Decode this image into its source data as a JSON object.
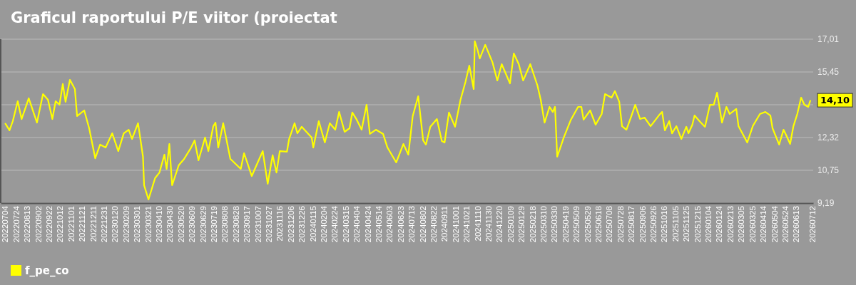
{
  "chart_data": {
    "type": "line",
    "title": "Graficul raportului P/E viitor (proiectat",
    "x": [
      "2022-07-04",
      "2022-07-12",
      "2022-07-18",
      "2022-07-27",
      "2022-08-03",
      "2022-08-12",
      "2022-08-16",
      "2022-08-31",
      "2022-09-11",
      "2022-09-20",
      "2022-09-28",
      "2022-10-04",
      "2022-10-11",
      "2022-10-17",
      "2022-10-22",
      "2022-10-30",
      "2022-11-08",
      "2022-11-12",
      "2022-11-25",
      "2022-12-04",
      "2022-12-15",
      "2022-12-24",
      "2023-01-03",
      "2023-01-15",
      "2023-01-26",
      "2023-02-05",
      "2023-02-14",
      "2023-02-20",
      "2023-03-03",
      "2023-03-12",
      "2023-03-14",
      "2023-03-22",
      "2023-04-03",
      "2023-04-11",
      "2023-04-20",
      "2023-04-24",
      "2023-04-29",
      "2023-05-04",
      "2023-05-16",
      "2023-05-26",
      "2023-06-07",
      "2023-06-14",
      "2023-06-21",
      "2023-07-03",
      "2023-07-09",
      "2023-07-18",
      "2023-07-22",
      "2023-07-27",
      "2023-08-05",
      "2023-08-18",
      "2023-09-06",
      "2023-09-12",
      "2023-09-26",
      "2023-10-16",
      "2023-10-25",
      "2023-11-03",
      "2023-11-10",
      "2023-11-16",
      "2023-11-29",
      "2023-12-03",
      "2023-12-13",
      "2023-12-18",
      "2023-12-26",
      "2024-01-13",
      "2024-01-16",
      "2024-01-26",
      "2024-02-06",
      "2024-02-15",
      "2024-02-25",
      "2024-03-03",
      "2024-03-13",
      "2024-03-22",
      "2024-03-27",
      "2024-04-04",
      "2024-04-13",
      "2024-04-22",
      "2024-04-28",
      "2024-05-09",
      "2024-05-22",
      "2024-05-30",
      "2024-06-15",
      "2024-06-28",
      "2024-07-07",
      "2024-07-15",
      "2024-07-25",
      "2024-08-03",
      "2024-08-08",
      "2024-08-16",
      "2024-08-28",
      "2024-09-06",
      "2024-09-11",
      "2024-09-19",
      "2024-09-30",
      "2024-10-10",
      "2024-10-19",
      "2024-10-26",
      "2024-11-03",
      "2024-11-05",
      "2024-11-10",
      "2024-11-14",
      "2024-11-24",
      "2024-12-07",
      "2024-12-16",
      "2024-12-24",
      "2025-01-08",
      "2025-01-15",
      "2025-01-24",
      "2025-02-01",
      "2025-02-14",
      "2025-02-27",
      "2025-03-05",
      "2025-03-12",
      "2025-03-21",
      "2025-03-27",
      "2025-03-31",
      "2025-04-04",
      "2025-04-16",
      "2025-04-29",
      "2025-05-12",
      "2025-05-18",
      "2025-05-22",
      "2025-06-03",
      "2025-06-13",
      "2025-06-24",
      "2025-06-30",
      "2025-07-12",
      "2025-07-18",
      "2025-07-26",
      "2025-07-31",
      "2025-08-08",
      "2025-08-17",
      "2025-08-24",
      "2025-09-02",
      "2025-09-10",
      "2025-09-21",
      "2025-10-06",
      "2025-10-12",
      "2025-10-17",
      "2025-10-25",
      "2025-10-30",
      "2025-11-07",
      "2025-11-16",
      "2025-11-25",
      "2025-11-29",
      "2025-12-06",
      "2025-12-10",
      "2025-12-19",
      "2025-12-29",
      "2026-01-07",
      "2026-01-14",
      "2026-01-20",
      "2026-01-29",
      "2026-02-06",
      "2026-02-12",
      "2026-02-24",
      "2026-02-28",
      "2026-03-16",
      "2026-03-26",
      "2026-04-08",
      "2026-04-18",
      "2026-04-27",
      "2026-05-01",
      "2026-05-13",
      "2026-05-21",
      "2026-05-26",
      "2026-06-02",
      "2026-06-08",
      "2026-06-15",
      "2026-06-22",
      "2026-06-28",
      "2026-07-05",
      "2026-07-09"
    ],
    "series": [
      {
        "name": "f_pe_co",
        "color": "#ffff00",
        "values": [
          13.0,
          12.66,
          13.1,
          14.05,
          13.2,
          13.88,
          14.19,
          13.03,
          14.39,
          14.12,
          13.2,
          14.05,
          13.88,
          14.87,
          14.02,
          15.07,
          14.63,
          13.34,
          13.61,
          12.76,
          11.33,
          11.98,
          11.84,
          12.52,
          11.67,
          12.52,
          12.69,
          12.25,
          13.0,
          11.4,
          10.04,
          9.36,
          10.38,
          10.65,
          11.5,
          10.82,
          12.01,
          10.04,
          10.99,
          11.3,
          11.81,
          12.18,
          11.23,
          12.32,
          11.67,
          12.86,
          13.03,
          11.84,
          13.0,
          11.3,
          10.82,
          11.57,
          10.48,
          11.67,
          10.11,
          11.47,
          10.65,
          11.67,
          11.64,
          12.25,
          13.0,
          12.52,
          12.83,
          12.32,
          11.84,
          13.1,
          12.08,
          13.0,
          12.69,
          13.54,
          12.59,
          12.76,
          13.51,
          13.17,
          12.69,
          13.88,
          12.49,
          12.69,
          12.49,
          11.84,
          11.13,
          12.01,
          11.5,
          13.34,
          14.29,
          12.18,
          11.98,
          12.83,
          13.2,
          12.15,
          12.08,
          13.51,
          12.83,
          14.12,
          14.97,
          15.75,
          14.63,
          16.91,
          16.5,
          16.09,
          16.74,
          15.92,
          15.04,
          15.82,
          14.9,
          16.33,
          15.82,
          15.04,
          15.82,
          14.8,
          14.12,
          13.03,
          13.78,
          13.54,
          13.78,
          11.4,
          12.32,
          13.17,
          13.78,
          13.78,
          13.17,
          13.61,
          12.93,
          13.44,
          14.39,
          14.22,
          14.53,
          14.02,
          12.86,
          12.69,
          13.34,
          13.88,
          13.2,
          13.27,
          12.86,
          13.37,
          13.54,
          12.66,
          13.1,
          12.52,
          12.86,
          12.25,
          12.83,
          12.52,
          12.93,
          13.37,
          13.1,
          12.83,
          13.88,
          13.88,
          14.46,
          13.03,
          13.78,
          13.44,
          13.68,
          12.86,
          12.08,
          12.86,
          13.44,
          13.54,
          13.37,
          12.76,
          11.98,
          12.69,
          12.42,
          12.01,
          12.86,
          13.44,
          14.22,
          13.88,
          13.78,
          14.1
        ]
      }
    ],
    "xlim": [
      "2022-06-26",
      "2026-07-14"
    ],
    "xticks": [
      {
        "value": "2022-07-04",
        "label": "20220704"
      },
      {
        "value": "2022-07-24",
        "label": "20220724"
      },
      {
        "value": "2022-08-13",
        "label": "20220813"
      },
      {
        "value": "2022-09-02",
        "label": "20220902"
      },
      {
        "value": "2022-09-22",
        "label": "20220922"
      },
      {
        "value": "2022-10-12",
        "label": "20221012"
      },
      {
        "value": "2022-11-01",
        "label": "20221101"
      },
      {
        "value": "2022-11-21",
        "label": "20221121"
      },
      {
        "value": "2022-12-11",
        "label": "20221211"
      },
      {
        "value": "2022-12-31",
        "label": "20221231"
      },
      {
        "value": "2023-01-20",
        "label": "20230120"
      },
      {
        "value": "2023-02-09",
        "label": "20230209"
      },
      {
        "value": "2023-03-01",
        "label": "20230301"
      },
      {
        "value": "2023-03-21",
        "label": "20230321"
      },
      {
        "value": "2023-04-10",
        "label": "20230410"
      },
      {
        "value": "2023-04-30",
        "label": "20230430"
      },
      {
        "value": "2023-05-20",
        "label": "20230520"
      },
      {
        "value": "2023-06-09",
        "label": "20230609"
      },
      {
        "value": "2023-06-29",
        "label": "20230629"
      },
      {
        "value": "2023-07-19",
        "label": "20230719"
      },
      {
        "value": "2023-08-08",
        "label": "20230808"
      },
      {
        "value": "2023-08-28",
        "label": "20230828"
      },
      {
        "value": "2023-09-17",
        "label": "20230917"
      },
      {
        "value": "2023-10-07",
        "label": "20231007"
      },
      {
        "value": "2023-10-27",
        "label": "20231027"
      },
      {
        "value": "2023-11-16",
        "label": "20231116"
      },
      {
        "value": "2023-12-06",
        "label": "20231206"
      },
      {
        "value": "2023-12-26",
        "label": "20231226"
      },
      {
        "value": "2024-01-15",
        "label": "20240115"
      },
      {
        "value": "2024-02-04",
        "label": "20240204"
      },
      {
        "value": "2024-02-24",
        "label": "20240224"
      },
      {
        "value": "2024-03-15",
        "label": "20240315"
      },
      {
        "value": "2024-04-04",
        "label": "20240404"
      },
      {
        "value": "2024-04-24",
        "label": "20240424"
      },
      {
        "value": "2024-05-14",
        "label": "20240514"
      },
      {
        "value": "2024-06-03",
        "label": "20240603"
      },
      {
        "value": "2024-06-23",
        "label": "20240623"
      },
      {
        "value": "2024-07-13",
        "label": "20240713"
      },
      {
        "value": "2024-08-02",
        "label": "20240802"
      },
      {
        "value": "2024-08-22",
        "label": "20240822"
      },
      {
        "value": "2024-09-11",
        "label": "20240911"
      },
      {
        "value": "2024-10-01",
        "label": "20241001"
      },
      {
        "value": "2024-10-21",
        "label": "20241021"
      },
      {
        "value": "2024-11-10",
        "label": "20241110"
      },
      {
        "value": "2024-11-30",
        "label": "20241130"
      },
      {
        "value": "2024-12-20",
        "label": "20241220"
      },
      {
        "value": "2025-01-09",
        "label": "20250109"
      },
      {
        "value": "2025-01-29",
        "label": "20250129"
      },
      {
        "value": "2025-02-18",
        "label": "20250218"
      },
      {
        "value": "2025-03-10",
        "label": "20250310"
      },
      {
        "value": "2025-03-30",
        "label": "20250330"
      },
      {
        "value": "2025-04-19",
        "label": "20250419"
      },
      {
        "value": "2025-05-09",
        "label": "20250509"
      },
      {
        "value": "2025-05-29",
        "label": "20250529"
      },
      {
        "value": "2025-06-18",
        "label": "20250618"
      },
      {
        "value": "2025-07-08",
        "label": "20250708"
      },
      {
        "value": "2025-07-28",
        "label": "20250728"
      },
      {
        "value": "2025-08-17",
        "label": "20250817"
      },
      {
        "value": "2025-09-06",
        "label": "20250906"
      },
      {
        "value": "2025-09-26",
        "label": "20250926"
      },
      {
        "value": "2025-10-16",
        "label": "20251016"
      },
      {
        "value": "2025-11-05",
        "label": "20251105"
      },
      {
        "value": "2025-11-25",
        "label": "20251125"
      },
      {
        "value": "2025-12-15",
        "label": "20251215"
      },
      {
        "value": "2026-01-04",
        "label": "20260104"
      },
      {
        "value": "2026-01-24",
        "label": "20260124"
      },
      {
        "value": "2026-02-13",
        "label": "20260213"
      },
      {
        "value": "2026-03-05",
        "label": "20260305"
      },
      {
        "value": "2026-03-25",
        "label": "20260325"
      },
      {
        "value": "2026-04-14",
        "label": "20260414"
      },
      {
        "value": "2026-05-04",
        "label": "20260504"
      },
      {
        "value": "2026-05-24",
        "label": "20260524"
      },
      {
        "value": "2026-06-13",
        "label": "20260613"
      },
      {
        "value": "2026-07-12",
        "label": "20260712"
      }
    ],
    "ylim": [
      9.19,
      17.01
    ],
    "yticks": [
      {
        "value": 9.19,
        "label": "9,19"
      },
      {
        "value": 10.75,
        "label": "10,75"
      },
      {
        "value": 12.32,
        "label": "12,32"
      },
      {
        "value": 13.88,
        "label": null
      },
      {
        "value": 15.45,
        "label": "15,45"
      },
      {
        "value": 17.01,
        "label": "17,01"
      }
    ],
    "grid": "y",
    "legend": "bottom",
    "annotations": [
      "14,10"
    ]
  }
}
